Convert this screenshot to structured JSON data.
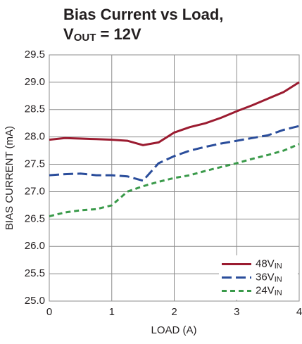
{
  "chart_data": {
    "type": "line",
    "title": "Bias Current vs Load,",
    "subtitle": "VOUT = 12V",
    "xlabel": "LOAD (A)",
    "ylabel": "BIAS CURRENT (mA)",
    "x": [
      0,
      0.25,
      0.5,
      0.75,
      1,
      1.25,
      1.5,
      1.75,
      2,
      2.25,
      2.5,
      2.75,
      3,
      3.25,
      3.5,
      3.75,
      4
    ],
    "series": [
      {
        "name": "48VIN",
        "color": "#9b1b30",
        "linestyle": "solid",
        "values": [
          27.95,
          27.98,
          27.97,
          27.96,
          27.95,
          27.93,
          27.85,
          27.9,
          28.08,
          28.18,
          28.25,
          28.35,
          28.47,
          28.58,
          28.7,
          28.82,
          29.0
        ]
      },
      {
        "name": "36VIN",
        "color": "#2a4d9b",
        "linestyle": "long-dash",
        "values": [
          27.3,
          27.32,
          27.33,
          27.3,
          27.3,
          27.28,
          27.2,
          27.52,
          27.65,
          27.75,
          27.82,
          27.88,
          27.93,
          27.98,
          28.03,
          28.13,
          28.2
        ]
      },
      {
        "name": "24VIN",
        "color": "#3a9a4a",
        "linestyle": "dashed",
        "values": [
          26.55,
          26.62,
          26.66,
          26.68,
          26.75,
          27.0,
          27.1,
          27.18,
          27.25,
          27.3,
          27.38,
          27.45,
          27.52,
          27.6,
          27.67,
          27.75,
          27.87
        ]
      }
    ],
    "xlim": [
      0,
      4
    ],
    "xticks": [
      0,
      1,
      2,
      3,
      4
    ],
    "ylim": [
      25,
      29.5
    ],
    "yticks": [
      {
        "value": 25,
        "label": "25.0"
      },
      25.5,
      {
        "value": 26,
        "label": "26.0"
      },
      26.5,
      {
        "value": 27,
        "label": "27.0"
      },
      27.5,
      {
        "value": 28,
        "label": "28.0"
      },
      28.5,
      {
        "value": 29,
        "label": "29.0"
      },
      29.5
    ],
    "grid": true,
    "legend": "lower right"
  }
}
